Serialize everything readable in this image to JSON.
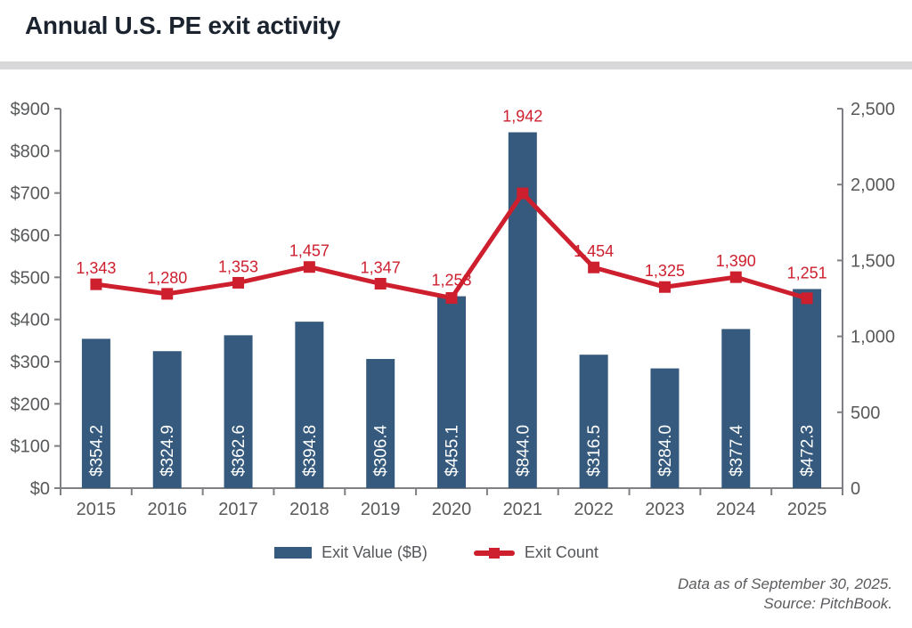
{
  "header": {
    "title": "Annual U.S. PE exit activity"
  },
  "chart_data": {
    "type": "bar",
    "title": "Annual U.S. PE exit activity",
    "categories": [
      "2015",
      "2016",
      "2017",
      "2018",
      "2019",
      "2020",
      "2021",
      "2022",
      "2023",
      "2024",
      "2025"
    ],
    "series": [
      {
        "name": "Exit Value ($B)",
        "type": "bar",
        "axis": "left",
        "color": "#365a7d",
        "values": [
          354.2,
          324.9,
          362.6,
          394.8,
          306.4,
          455.1,
          844.0,
          316.5,
          284.0,
          377.4,
          472.3
        ],
        "labels": [
          "$354.2",
          "$324.9",
          "$362.6",
          "$394.8",
          "$306.4",
          "$455.1",
          "$844.0",
          "$316.5",
          "$284.0",
          "$377.4",
          "$472.3"
        ]
      },
      {
        "name": "Exit Count",
        "type": "line",
        "axis": "right",
        "color": "#cd1f2d",
        "values": [
          1343,
          1280,
          1353,
          1457,
          1347,
          1253,
          1942,
          1454,
          1325,
          1390,
          1251
        ],
        "labels": [
          "1,343",
          "1,280",
          "1,353",
          "1,457",
          "1,347",
          "1,253",
          "1,942",
          "1,454",
          "1,325",
          "1,390",
          "1,251"
        ]
      }
    ],
    "left_axis": {
      "min": 0,
      "max": 900,
      "tick_values": [
        0,
        100,
        200,
        300,
        400,
        500,
        600,
        700,
        800,
        900
      ],
      "tick_labels": [
        "$0",
        "$100",
        "$200",
        "$300",
        "$400",
        "$500",
        "$600",
        "$700",
        "$800",
        "$900"
      ]
    },
    "right_axis": {
      "min": 0,
      "max": 2500,
      "tick_values": [
        0,
        500,
        1000,
        1500,
        2000,
        2500
      ],
      "tick_labels": [
        "0",
        "500",
        "1,000",
        "1,500",
        "2,000",
        "2,500"
      ]
    },
    "grid": false,
    "legend_position": "bottom"
  },
  "footnote": {
    "line1": "Data as of September 30, 2025.",
    "line2": "Source: PitchBook."
  }
}
